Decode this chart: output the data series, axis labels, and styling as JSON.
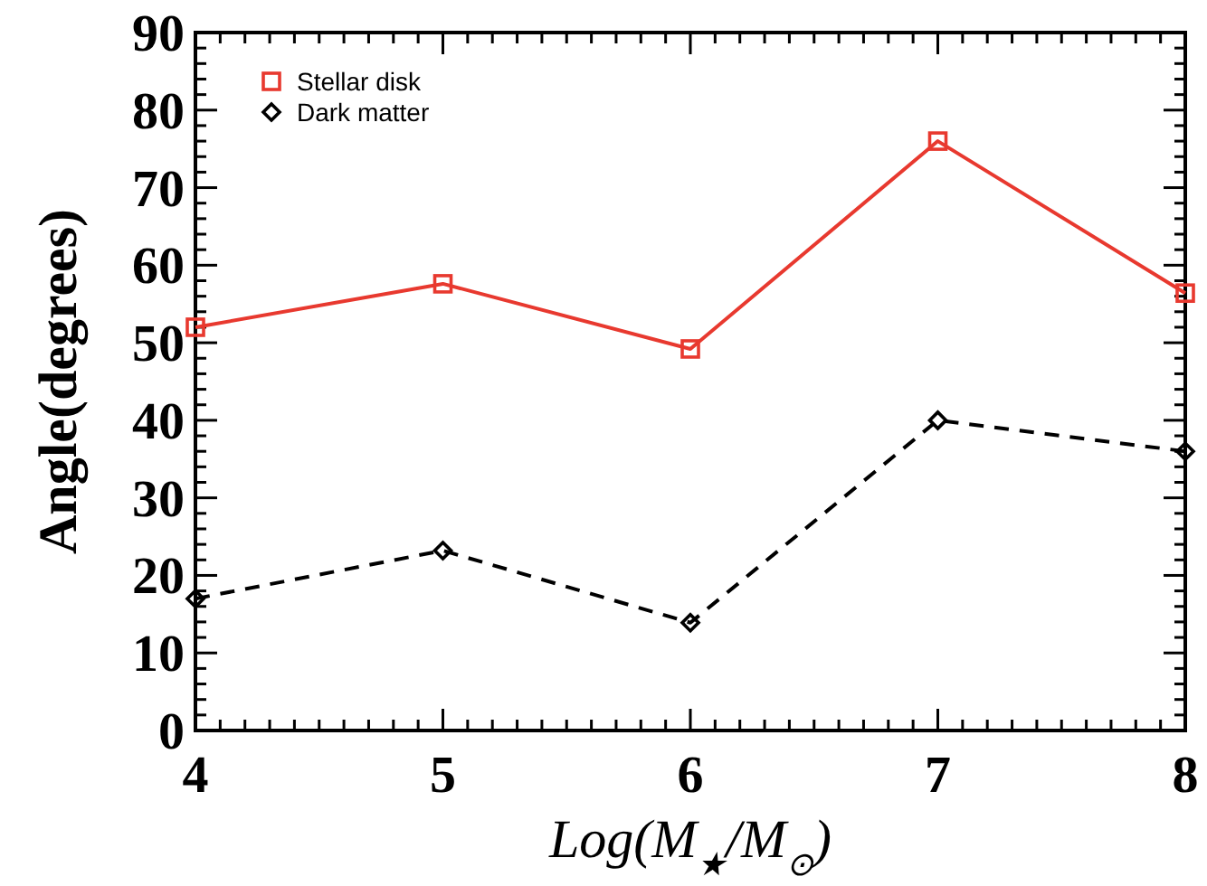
{
  "chart_data": {
    "type": "line",
    "xlabel": "Log(M$_{★}$/M$_{⊙}$)",
    "ylabel": "Angle(degrees)",
    "x": [
      4,
      5,
      6,
      7,
      8
    ],
    "series": [
      {
        "name": "Stellar disk",
        "color": "#e8392f",
        "values": [
          52.0,
          57.6,
          49.2,
          76.0,
          56.4
        ],
        "marker": "square",
        "line_style": "solid"
      },
      {
        "name": "Dark matter",
        "color": "#000000",
        "values": [
          17.0,
          23.2,
          13.9,
          40.0,
          36.0
        ],
        "marker": "diamond",
        "line_style": "dashed"
      }
    ],
    "xlim": [
      4,
      8
    ],
    "ylim": [
      0,
      90
    ],
    "xticks": [
      4,
      5,
      6,
      7,
      8
    ],
    "yticks": [
      0,
      10,
      20,
      30,
      40,
      50,
      60,
      70,
      80,
      90
    ],
    "legend": "top left",
    "grid": false
  }
}
